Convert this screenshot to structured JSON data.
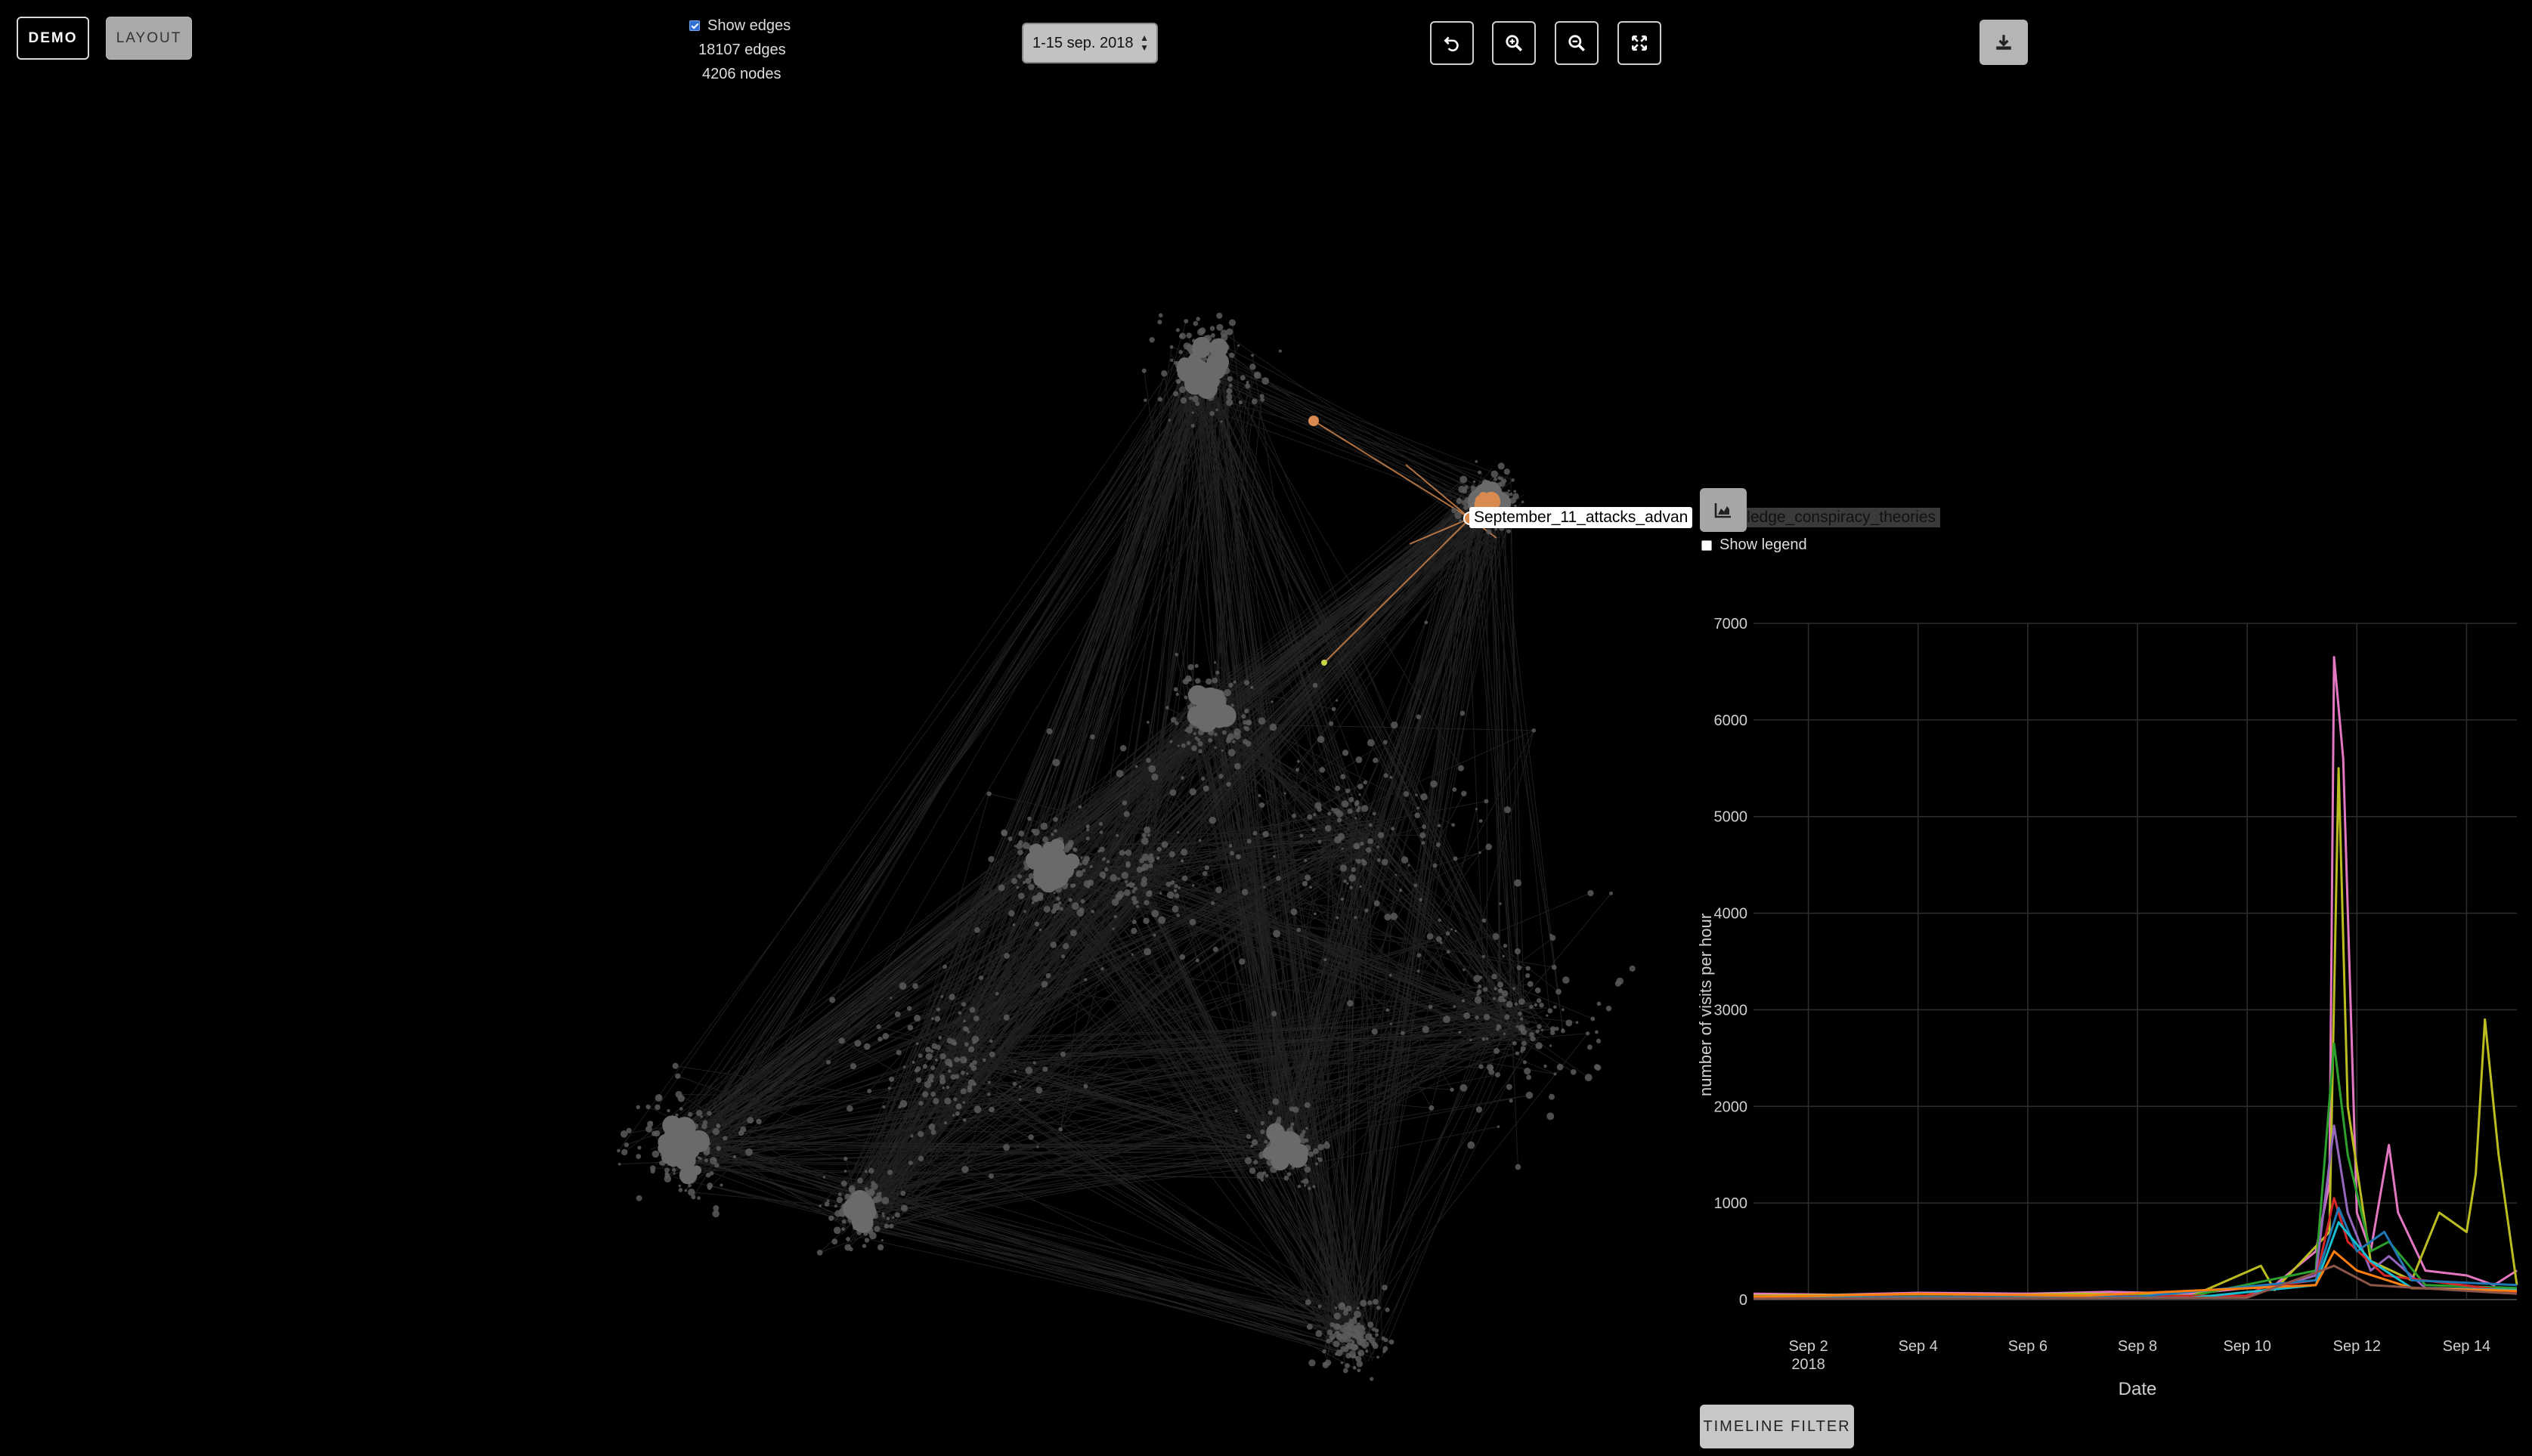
{
  "toolbar": {
    "demo_label": "DEMO",
    "layout_label": "LAYOUT",
    "show_edges_label": "Show edges",
    "show_edges_checked": true,
    "edges_count": "18107 edges",
    "nodes_count": "4206 nodes",
    "date_range": "1-15 sep. 2018",
    "icons": [
      "undo-icon",
      "zoom-in-icon",
      "zoom-out-icon",
      "fullscreen-icon",
      "download-icon"
    ]
  },
  "network": {
    "selected_node_label": "September_11_attacks_advan",
    "selected_node_label_tail": "wledge_conspiracy_theories",
    "highlight_color": "#d98a4f",
    "node_color": "#5a5a5a"
  },
  "chart_panel": {
    "chart_icon": "area-chart-icon",
    "show_legend_label": "Show legend",
    "show_legend_checked": false,
    "timeline_filter_label": "TIMELINE FILTER"
  },
  "chart_data": {
    "type": "line",
    "title": "",
    "xlabel": "Date",
    "ylabel": "number of visits per hour",
    "ylim": [
      0,
      7000
    ],
    "xlim": [
      "2018-09-01T00:00",
      "2018-09-14T22:00"
    ],
    "yticks": [
      "0",
      "1000",
      "2000",
      "3000",
      "4000",
      "5000",
      "6000",
      "7000"
    ],
    "xticks": [
      {
        "label": "Sep 2",
        "sublabel": "2018",
        "date": "2018-09-02"
      },
      {
        "label": "Sep 4",
        "sublabel": "",
        "date": "2018-09-04"
      },
      {
        "label": "Sep 6",
        "sublabel": "",
        "date": "2018-09-06"
      },
      {
        "label": "Sep 8",
        "sublabel": "",
        "date": "2018-09-08"
      },
      {
        "label": "Sep 10",
        "sublabel": "",
        "date": "2018-09-10"
      },
      {
        "label": "Sep 12",
        "sublabel": "",
        "date": "2018-09-12"
      },
      {
        "label": "Sep 14",
        "sublabel": "",
        "date": "2018-09-14"
      }
    ],
    "grid": true,
    "series": [
      {
        "color": "#e377c2",
        "points": [
          [
            "2018-09-01T00:00",
            60
          ],
          [
            "2018-09-02T12:00",
            50
          ],
          [
            "2018-09-04T00:00",
            70
          ],
          [
            "2018-09-06T00:00",
            60
          ],
          [
            "2018-09-07T12:00",
            80
          ],
          [
            "2018-09-09T00:00",
            60
          ],
          [
            "2018-09-10T12:00",
            150
          ],
          [
            "2018-09-11T06:00",
            500
          ],
          [
            "2018-09-11T12:00",
            1200
          ],
          [
            "2018-09-11T14:00",
            6650
          ],
          [
            "2018-09-11T18:00",
            5600
          ],
          [
            "2018-09-12T00:00",
            900
          ],
          [
            "2018-09-12T06:00",
            500
          ],
          [
            "2018-09-12T14:00",
            1600
          ],
          [
            "2018-09-12T18:00",
            900
          ],
          [
            "2018-09-13T06:00",
            300
          ],
          [
            "2018-09-14T00:00",
            250
          ],
          [
            "2018-09-14T12:00",
            150
          ],
          [
            "2018-09-14T22:00",
            300
          ]
        ]
      },
      {
        "color": "#bcbd22",
        "points": [
          [
            "2018-09-01T00:00",
            40
          ],
          [
            "2018-09-03T00:00",
            50
          ],
          [
            "2018-09-05T00:00",
            40
          ],
          [
            "2018-09-07T00:00",
            60
          ],
          [
            "2018-09-09T00:00",
            40
          ],
          [
            "2018-09-10T06:00",
            350
          ],
          [
            "2018-09-10T12:00",
            100
          ],
          [
            "2018-09-11T12:00",
            700
          ],
          [
            "2018-09-11T16:00",
            5500
          ],
          [
            "2018-09-11T20:00",
            2000
          ],
          [
            "2018-09-12T06:00",
            400
          ],
          [
            "2018-09-13T00:00",
            200
          ],
          [
            "2018-09-13T12:00",
            900
          ],
          [
            "2018-09-14T00:00",
            700
          ],
          [
            "2018-09-14T04:00",
            1300
          ],
          [
            "2018-09-14T08:00",
            2900
          ],
          [
            "2018-09-14T14:00",
            1500
          ],
          [
            "2018-09-14T22:00",
            150
          ]
        ]
      },
      {
        "color": "#2ca02c",
        "points": [
          [
            "2018-09-01T00:00",
            30
          ],
          [
            "2018-09-05T00:00",
            40
          ],
          [
            "2018-09-09T00:00",
            40
          ],
          [
            "2018-09-11T06:00",
            300
          ],
          [
            "2018-09-11T14:00",
            2650
          ],
          [
            "2018-09-11T20:00",
            1500
          ],
          [
            "2018-09-12T06:00",
            500
          ],
          [
            "2018-09-12T14:00",
            600
          ],
          [
            "2018-09-13T06:00",
            150
          ],
          [
            "2018-09-14T22:00",
            120
          ]
        ]
      },
      {
        "color": "#9467bd",
        "points": [
          [
            "2018-09-01T00:00",
            20
          ],
          [
            "2018-09-06T00:00",
            30
          ],
          [
            "2018-09-10T00:00",
            40
          ],
          [
            "2018-09-11T06:00",
            250
          ],
          [
            "2018-09-11T14:00",
            1800
          ],
          [
            "2018-09-11T20:00",
            900
          ],
          [
            "2018-09-12T06:00",
            300
          ],
          [
            "2018-09-12T14:00",
            450
          ],
          [
            "2018-09-13T06:00",
            120
          ],
          [
            "2018-09-14T22:00",
            100
          ]
        ]
      },
      {
        "color": "#d62728",
        "points": [
          [
            "2018-09-01T00:00",
            30
          ],
          [
            "2018-09-06T00:00",
            30
          ],
          [
            "2018-09-10T00:00",
            40
          ],
          [
            "2018-09-10T06:00",
            120
          ],
          [
            "2018-09-11T06:00",
            200
          ],
          [
            "2018-09-11T14:00",
            1050
          ],
          [
            "2018-09-11T20:00",
            600
          ],
          [
            "2018-09-12T12:00",
            250
          ],
          [
            "2018-09-14T22:00",
            80
          ]
        ]
      },
      {
        "color": "#1f77b4",
        "points": [
          [
            "2018-09-01T00:00",
            20
          ],
          [
            "2018-09-08T00:00",
            30
          ],
          [
            "2018-09-11T06:00",
            200
          ],
          [
            "2018-09-11T16:00",
            950
          ],
          [
            "2018-09-12T00:00",
            500
          ],
          [
            "2018-09-12T12:00",
            700
          ],
          [
            "2018-09-13T00:00",
            200
          ],
          [
            "2018-09-14T22:00",
            150
          ]
        ]
      },
      {
        "color": "#17becf",
        "points": [
          [
            "2018-09-01T00:00",
            15
          ],
          [
            "2018-09-09T00:00",
            20
          ],
          [
            "2018-09-11T06:00",
            150
          ],
          [
            "2018-09-11T16:00",
            800
          ],
          [
            "2018-09-12T06:00",
            400
          ],
          [
            "2018-09-13T00:00",
            120
          ],
          [
            "2018-09-14T22:00",
            100
          ]
        ]
      },
      {
        "color": "#ff7f0e",
        "points": [
          [
            "2018-09-01T00:00",
            25
          ],
          [
            "2018-09-04T00:00",
            60
          ],
          [
            "2018-09-07T00:00",
            40
          ],
          [
            "2018-09-11T06:00",
            150
          ],
          [
            "2018-09-11T14:00",
            500
          ],
          [
            "2018-09-12T00:00",
            300
          ],
          [
            "2018-09-13T00:00",
            120
          ],
          [
            "2018-09-14T22:00",
            90
          ]
        ]
      },
      {
        "color": "#8c564b",
        "points": [
          [
            "2018-09-01T00:00",
            10
          ],
          [
            "2018-09-10T00:00",
            20
          ],
          [
            "2018-09-11T14:00",
            350
          ],
          [
            "2018-09-12T06:00",
            150
          ],
          [
            "2018-09-14T22:00",
            60
          ]
        ]
      }
    ]
  }
}
